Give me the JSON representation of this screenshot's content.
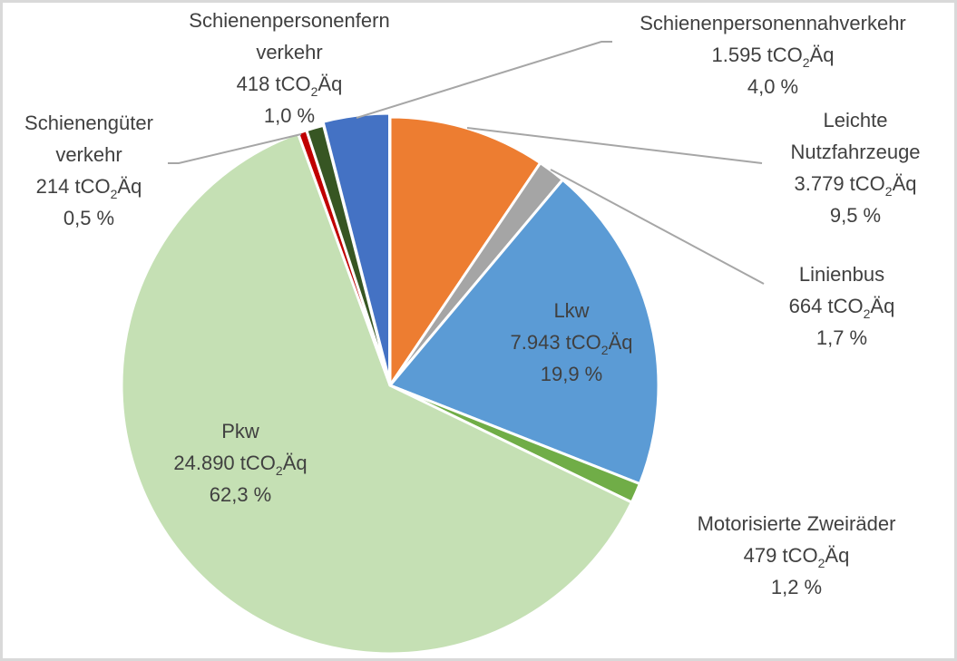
{
  "chart_data": {
    "type": "pie",
    "unit_prefix": "tCO",
    "unit_sub": "2",
    "unit_suffix": "Äq",
    "slices": [
      {
        "name": "Leichte Nutzfahrzeuge",
        "label_lines": [
          "Leichte",
          "Nutzfahrzeuge"
        ],
        "value": 3779,
        "value_text": "3.779",
        "percent": 9.5,
        "percent_text": "9,5 %",
        "color": "#ED7D31"
      },
      {
        "name": "Linienbus",
        "label_lines": [
          "Linienbus"
        ],
        "value": 664,
        "value_text": "664",
        "percent": 1.7,
        "percent_text": "1,7 %",
        "color": "#A5A5A5"
      },
      {
        "name": "Lkw",
        "label_lines": [
          "Lkw"
        ],
        "value": 7943,
        "value_text": "7.943",
        "percent": 19.9,
        "percent_text": "19,9 %",
        "color": "#5B9BD5"
      },
      {
        "name": "Motorisierte Zweiräder",
        "label_lines": [
          "Motorisierte Zweiräder"
        ],
        "value": 479,
        "value_text": "479",
        "percent": 1.2,
        "percent_text": "1,2 %",
        "color": "#70AD47"
      },
      {
        "name": "Pkw",
        "label_lines": [
          "Pkw"
        ],
        "value": 24890,
        "value_text": "24.890",
        "percent": 62.3,
        "percent_text": "62,3 %",
        "color": "#C5E0B4"
      },
      {
        "name": "Schienengüterverkehr",
        "label_lines": [
          "Schienengüter",
          "verkehr"
        ],
        "value": 214,
        "value_text": "214",
        "percent": 0.5,
        "percent_text": "0,5 %",
        "color": "#C00000"
      },
      {
        "name": "Schienenpersonenfernverkehr",
        "label_lines": [
          "Schienenpersonenfern",
          "verkehr"
        ],
        "value": 418,
        "value_text": "418",
        "percent": 1.0,
        "percent_text": "1,0 %",
        "color": "#375623"
      },
      {
        "name": "Schienenpersonennahverkehr",
        "label_lines": [
          "Schienenpersonennahverkehr"
        ],
        "value": 1595,
        "value_text": "1.595",
        "percent": 4.0,
        "percent_text": "4,0 %",
        "color": "#4472C4"
      }
    ]
  }
}
